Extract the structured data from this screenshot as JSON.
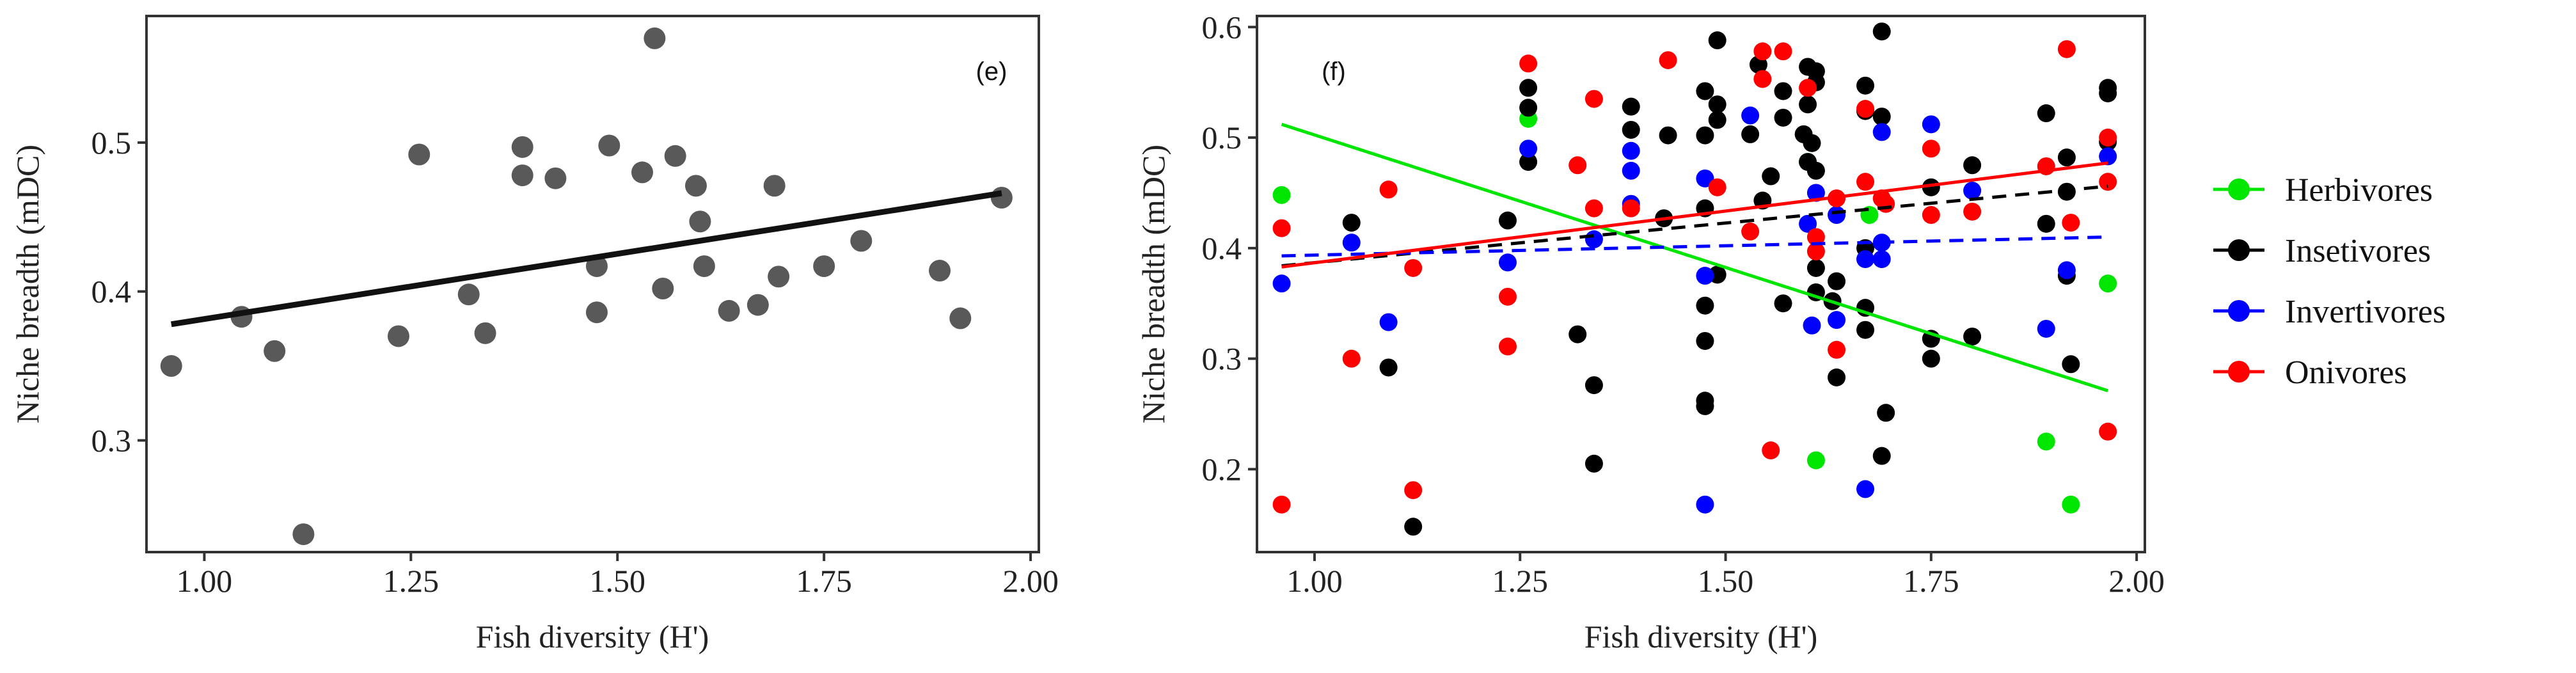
{
  "chart_data": [
    {
      "type": "scatter",
      "panel_label": "(e)",
      "xlabel": "Fish diversity (H')",
      "ylabel": "Niche breadth (mDC)",
      "xlim": [
        0.93,
        2.01
      ],
      "ylim": [
        0.225,
        0.585
      ],
      "xticks": [
        1.0,
        1.25,
        1.5,
        1.75,
        2.0
      ],
      "xtick_labels": [
        "1.00",
        "1.25",
        "1.50",
        "1.75",
        "2.00"
      ],
      "yticks": [
        0.3,
        0.4,
        0.5
      ],
      "ytick_labels": [
        "0.3",
        "0.4",
        "0.5"
      ],
      "point_color": "#595959",
      "points": [
        [
          0.96,
          0.35
        ],
        [
          1.045,
          0.383
        ],
        [
          1.085,
          0.36
        ],
        [
          1.12,
          0.237
        ],
        [
          1.235,
          0.37
        ],
        [
          1.26,
          0.492
        ],
        [
          1.32,
          0.398
        ],
        [
          1.34,
          0.372
        ],
        [
          1.385,
          0.497
        ],
        [
          1.385,
          0.478
        ],
        [
          1.425,
          0.476
        ],
        [
          1.475,
          0.417
        ],
        [
          1.475,
          0.386
        ],
        [
          1.49,
          0.498
        ],
        [
          1.53,
          0.48
        ],
        [
          1.545,
          0.57
        ],
        [
          1.555,
          0.402
        ],
        [
          1.57,
          0.491
        ],
        [
          1.595,
          0.471
        ],
        [
          1.6,
          0.447
        ],
        [
          1.605,
          0.417
        ],
        [
          1.635,
          0.387
        ],
        [
          1.67,
          0.391
        ],
        [
          1.69,
          0.471
        ],
        [
          1.695,
          0.41
        ],
        [
          1.75,
          0.417
        ],
        [
          1.795,
          0.434
        ],
        [
          1.89,
          0.414
        ],
        [
          1.915,
          0.382
        ],
        [
          1.965,
          0.463
        ]
      ],
      "trend": {
        "x": [
          0.96,
          1.965
        ],
        "y": [
          0.378,
          0.466
        ],
        "color": "#111111",
        "style": "solid"
      }
    },
    {
      "type": "scatter",
      "panel_label": "(f)",
      "xlabel": "Fish diversity (H')",
      "ylabel": "Niche breadth (mDC)",
      "xlim": [
        0.93,
        2.01
      ],
      "ylim": [
        0.125,
        0.61
      ],
      "xticks": [
        1.0,
        1.25,
        1.5,
        1.75,
        2.0
      ],
      "xtick_labels": [
        "1.00",
        "1.25",
        "1.50",
        "1.75",
        "2.00"
      ],
      "yticks": [
        0.2,
        0.3,
        0.4,
        0.5,
        0.6
      ],
      "ytick_labels": [
        "0.2",
        "0.3",
        "0.4",
        "0.5",
        "0.6"
      ],
      "series": [
        {
          "name": "Herbivores",
          "color": "#00e600",
          "points": [
            [
              0.96,
              0.448
            ],
            [
              1.26,
              0.517
            ],
            [
              1.6,
              0.478
            ],
            [
              1.61,
              0.208
            ],
            [
              1.675,
              0.43
            ],
            [
              1.89,
              0.225
            ],
            [
              1.92,
              0.168
            ],
            [
              1.965,
              0.368
            ]
          ],
          "trend": {
            "x": [
              0.96,
              1.965
            ],
            "y": [
              0.512,
              0.271
            ],
            "style": "solid"
          }
        },
        {
          "name": "Insetivores",
          "color": "#000000",
          "points": [
            [
              1.045,
              0.423
            ],
            [
              1.09,
              0.292
            ],
            [
              1.12,
              0.148
            ],
            [
              1.235,
              0.425
            ],
            [
              1.26,
              0.545
            ],
            [
              1.26,
              0.527
            ],
            [
              1.26,
              0.478
            ],
            [
              1.32,
              0.322
            ],
            [
              1.34,
              0.276
            ],
            [
              1.34,
              0.205
            ],
            [
              1.385,
              0.528
            ],
            [
              1.385,
              0.507
            ],
            [
              1.425,
              0.427
            ],
            [
              1.43,
              0.502
            ],
            [
              1.475,
              0.542
            ],
            [
              1.475,
              0.502
            ],
            [
              1.475,
              0.436
            ],
            [
              1.475,
              0.348
            ],
            [
              1.475,
              0.316
            ],
            [
              1.475,
              0.262
            ],
            [
              1.475,
              0.257
            ],
            [
              1.49,
              0.588
            ],
            [
              1.49,
              0.53
            ],
            [
              1.49,
              0.516
            ],
            [
              1.49,
              0.376
            ],
            [
              1.53,
              0.503
            ],
            [
              1.54,
              0.566
            ],
            [
              1.545,
              0.443
            ],
            [
              1.555,
              0.465
            ],
            [
              1.57,
              0.542
            ],
            [
              1.57,
              0.518
            ],
            [
              1.57,
              0.35
            ],
            [
              1.595,
              0.503
            ],
            [
              1.6,
              0.564
            ],
            [
              1.6,
              0.53
            ],
            [
              1.6,
              0.478
            ],
            [
              1.605,
              0.495
            ],
            [
              1.61,
              0.56
            ],
            [
              1.61,
              0.55
            ],
            [
              1.61,
              0.47
            ],
            [
              1.61,
              0.382
            ],
            [
              1.61,
              0.36
            ],
            [
              1.63,
              0.352
            ],
            [
              1.635,
              0.37
            ],
            [
              1.635,
              0.283
            ],
            [
              1.67,
              0.547
            ],
            [
              1.67,
              0.524
            ],
            [
              1.67,
              0.4
            ],
            [
              1.67,
              0.346
            ],
            [
              1.67,
              0.326
            ],
            [
              1.69,
              0.596
            ],
            [
              1.69,
              0.519
            ],
            [
              1.69,
              0.212
            ],
            [
              1.695,
              0.251
            ],
            [
              1.75,
              0.455
            ],
            [
              1.75,
              0.318
            ],
            [
              1.75,
              0.3
            ],
            [
              1.8,
              0.475
            ],
            [
              1.8,
              0.32
            ],
            [
              1.89,
              0.522
            ],
            [
              1.89,
              0.422
            ],
            [
              1.915,
              0.482
            ],
            [
              1.915,
              0.451
            ],
            [
              1.915,
              0.375
            ],
            [
              1.92,
              0.295
            ],
            [
              1.965,
              0.545
            ],
            [
              1.965,
              0.54
            ],
            [
              1.965,
              0.496
            ]
          ],
          "trend": {
            "x": [
              0.96,
              1.965
            ],
            "y": [
              0.384,
              0.456
            ],
            "style": "dashed"
          }
        },
        {
          "name": "Invertivores",
          "color": "#0000ff",
          "points": [
            [
              0.96,
              0.368
            ],
            [
              1.045,
              0.405
            ],
            [
              1.09,
              0.333
            ],
            [
              1.235,
              0.387
            ],
            [
              1.26,
              0.49
            ],
            [
              1.34,
              0.408
            ],
            [
              1.385,
              0.488
            ],
            [
              1.385,
              0.47
            ],
            [
              1.385,
              0.44
            ],
            [
              1.475,
              0.463
            ],
            [
              1.475,
              0.375
            ],
            [
              1.475,
              0.168
            ],
            [
              1.53,
              0.52
            ],
            [
              1.6,
              0.422
            ],
            [
              1.605,
              0.33
            ],
            [
              1.61,
              0.45
            ],
            [
              1.635,
              0.43
            ],
            [
              1.635,
              0.335
            ],
            [
              1.67,
              0.39
            ],
            [
              1.67,
              0.182
            ],
            [
              1.69,
              0.505
            ],
            [
              1.69,
              0.405
            ],
            [
              1.69,
              0.39
            ],
            [
              1.75,
              0.512
            ],
            [
              1.8,
              0.452
            ],
            [
              1.89,
              0.327
            ],
            [
              1.915,
              0.38
            ],
            [
              1.965,
              0.483
            ]
          ],
          "trend": {
            "x": [
              0.96,
              1.965
            ],
            "y": [
              0.393,
              0.41
            ],
            "style": "dashed"
          }
        },
        {
          "name": "Onivores",
          "color": "#ff0000",
          "points": [
            [
              0.96,
              0.418
            ],
            [
              0.96,
              0.168
            ],
            [
              1.045,
              0.3
            ],
            [
              1.09,
              0.453
            ],
            [
              1.12,
              0.382
            ],
            [
              1.12,
              0.181
            ],
            [
              1.235,
              0.356
            ],
            [
              1.235,
              0.311
            ],
            [
              1.26,
              0.567
            ],
            [
              1.32,
              0.475
            ],
            [
              1.34,
              0.535
            ],
            [
              1.34,
              0.436
            ],
            [
              1.385,
              0.436
            ],
            [
              1.43,
              0.57
            ],
            [
              1.49,
              0.455
            ],
            [
              1.53,
              0.415
            ],
            [
              1.545,
              0.578
            ],
            [
              1.545,
              0.553
            ],
            [
              1.555,
              0.217
            ],
            [
              1.57,
              0.578
            ],
            [
              1.6,
              0.545
            ],
            [
              1.61,
              0.41
            ],
            [
              1.61,
              0.397
            ],
            [
              1.635,
              0.445
            ],
            [
              1.635,
              0.308
            ],
            [
              1.67,
              0.526
            ],
            [
              1.67,
              0.46
            ],
            [
              1.69,
              0.445
            ],
            [
              1.695,
              0.44
            ],
            [
              1.75,
              0.49
            ],
            [
              1.75,
              0.43
            ],
            [
              1.8,
              0.433
            ],
            [
              1.89,
              0.474
            ],
            [
              1.915,
              0.58
            ],
            [
              1.92,
              0.423
            ],
            [
              1.965,
              0.5
            ],
            [
              1.965,
              0.46
            ],
            [
              1.965,
              0.234
            ]
          ],
          "trend": {
            "x": [
              0.96,
              1.965
            ],
            "y": [
              0.383,
              0.477
            ],
            "style": "solid"
          }
        }
      ],
      "legend": {
        "position": "right",
        "entries": [
          "Herbivores",
          "Insetivores",
          "Invertivores",
          "Onivores"
        ],
        "colors": [
          "#00e600",
          "#000000",
          "#0000ff",
          "#ff0000"
        ]
      }
    }
  ]
}
